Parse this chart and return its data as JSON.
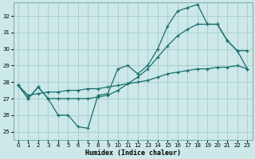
{
  "xlabel": "Humidex (Indice chaleur)",
  "bg_color": "#cce8e8",
  "grid_color": "#aacfcf",
  "line_color": "#1a6e6e",
  "xlim": [
    -0.5,
    23.5
  ],
  "ylim": [
    24.5,
    32.8
  ],
  "yticks": [
    25,
    26,
    27,
    28,
    29,
    30,
    31,
    32
  ],
  "xticks": [
    0,
    1,
    2,
    3,
    4,
    5,
    6,
    7,
    8,
    9,
    10,
    11,
    12,
    13,
    14,
    15,
    16,
    17,
    18,
    19,
    20,
    21,
    22,
    23
  ],
  "line1_x": [
    0,
    1,
    2,
    3,
    4,
    5,
    6,
    7,
    8,
    9,
    10,
    11,
    12,
    13,
    14,
    15,
    16,
    17,
    18,
    19,
    20,
    21,
    22,
    23
  ],
  "line1_y": [
    27.8,
    27.0,
    27.7,
    27.0,
    26.0,
    26.0,
    25.3,
    25.2,
    27.2,
    27.3,
    28.8,
    29.0,
    28.5,
    29.0,
    30.0,
    31.4,
    32.3,
    32.5,
    32.7,
    31.5,
    31.5,
    30.5,
    29.9,
    29.9
  ],
  "line2_x": [
    0,
    1,
    2,
    3,
    4,
    5,
    6,
    7,
    8,
    9,
    10,
    11,
    12,
    13,
    14,
    15,
    16,
    17,
    18,
    19,
    20,
    21,
    22,
    23
  ],
  "line2_y": [
    27.8,
    27.0,
    27.7,
    27.0,
    27.0,
    27.0,
    27.0,
    27.0,
    27.1,
    27.2,
    27.5,
    27.9,
    28.3,
    28.8,
    29.5,
    30.2,
    30.8,
    31.2,
    31.5,
    31.5,
    31.5,
    30.5,
    29.9,
    28.8
  ],
  "line3_x": [
    0,
    1,
    2,
    3,
    4,
    5,
    6,
    7,
    8,
    9,
    10,
    11,
    12,
    13,
    14,
    15,
    16,
    17,
    18,
    19,
    20,
    21,
    22,
    23
  ],
  "line3_y": [
    27.8,
    27.2,
    27.3,
    27.4,
    27.4,
    27.5,
    27.5,
    27.6,
    27.6,
    27.7,
    27.8,
    27.9,
    28.0,
    28.1,
    28.3,
    28.5,
    28.6,
    28.7,
    28.8,
    28.8,
    28.9,
    28.9,
    29.0,
    28.8
  ]
}
